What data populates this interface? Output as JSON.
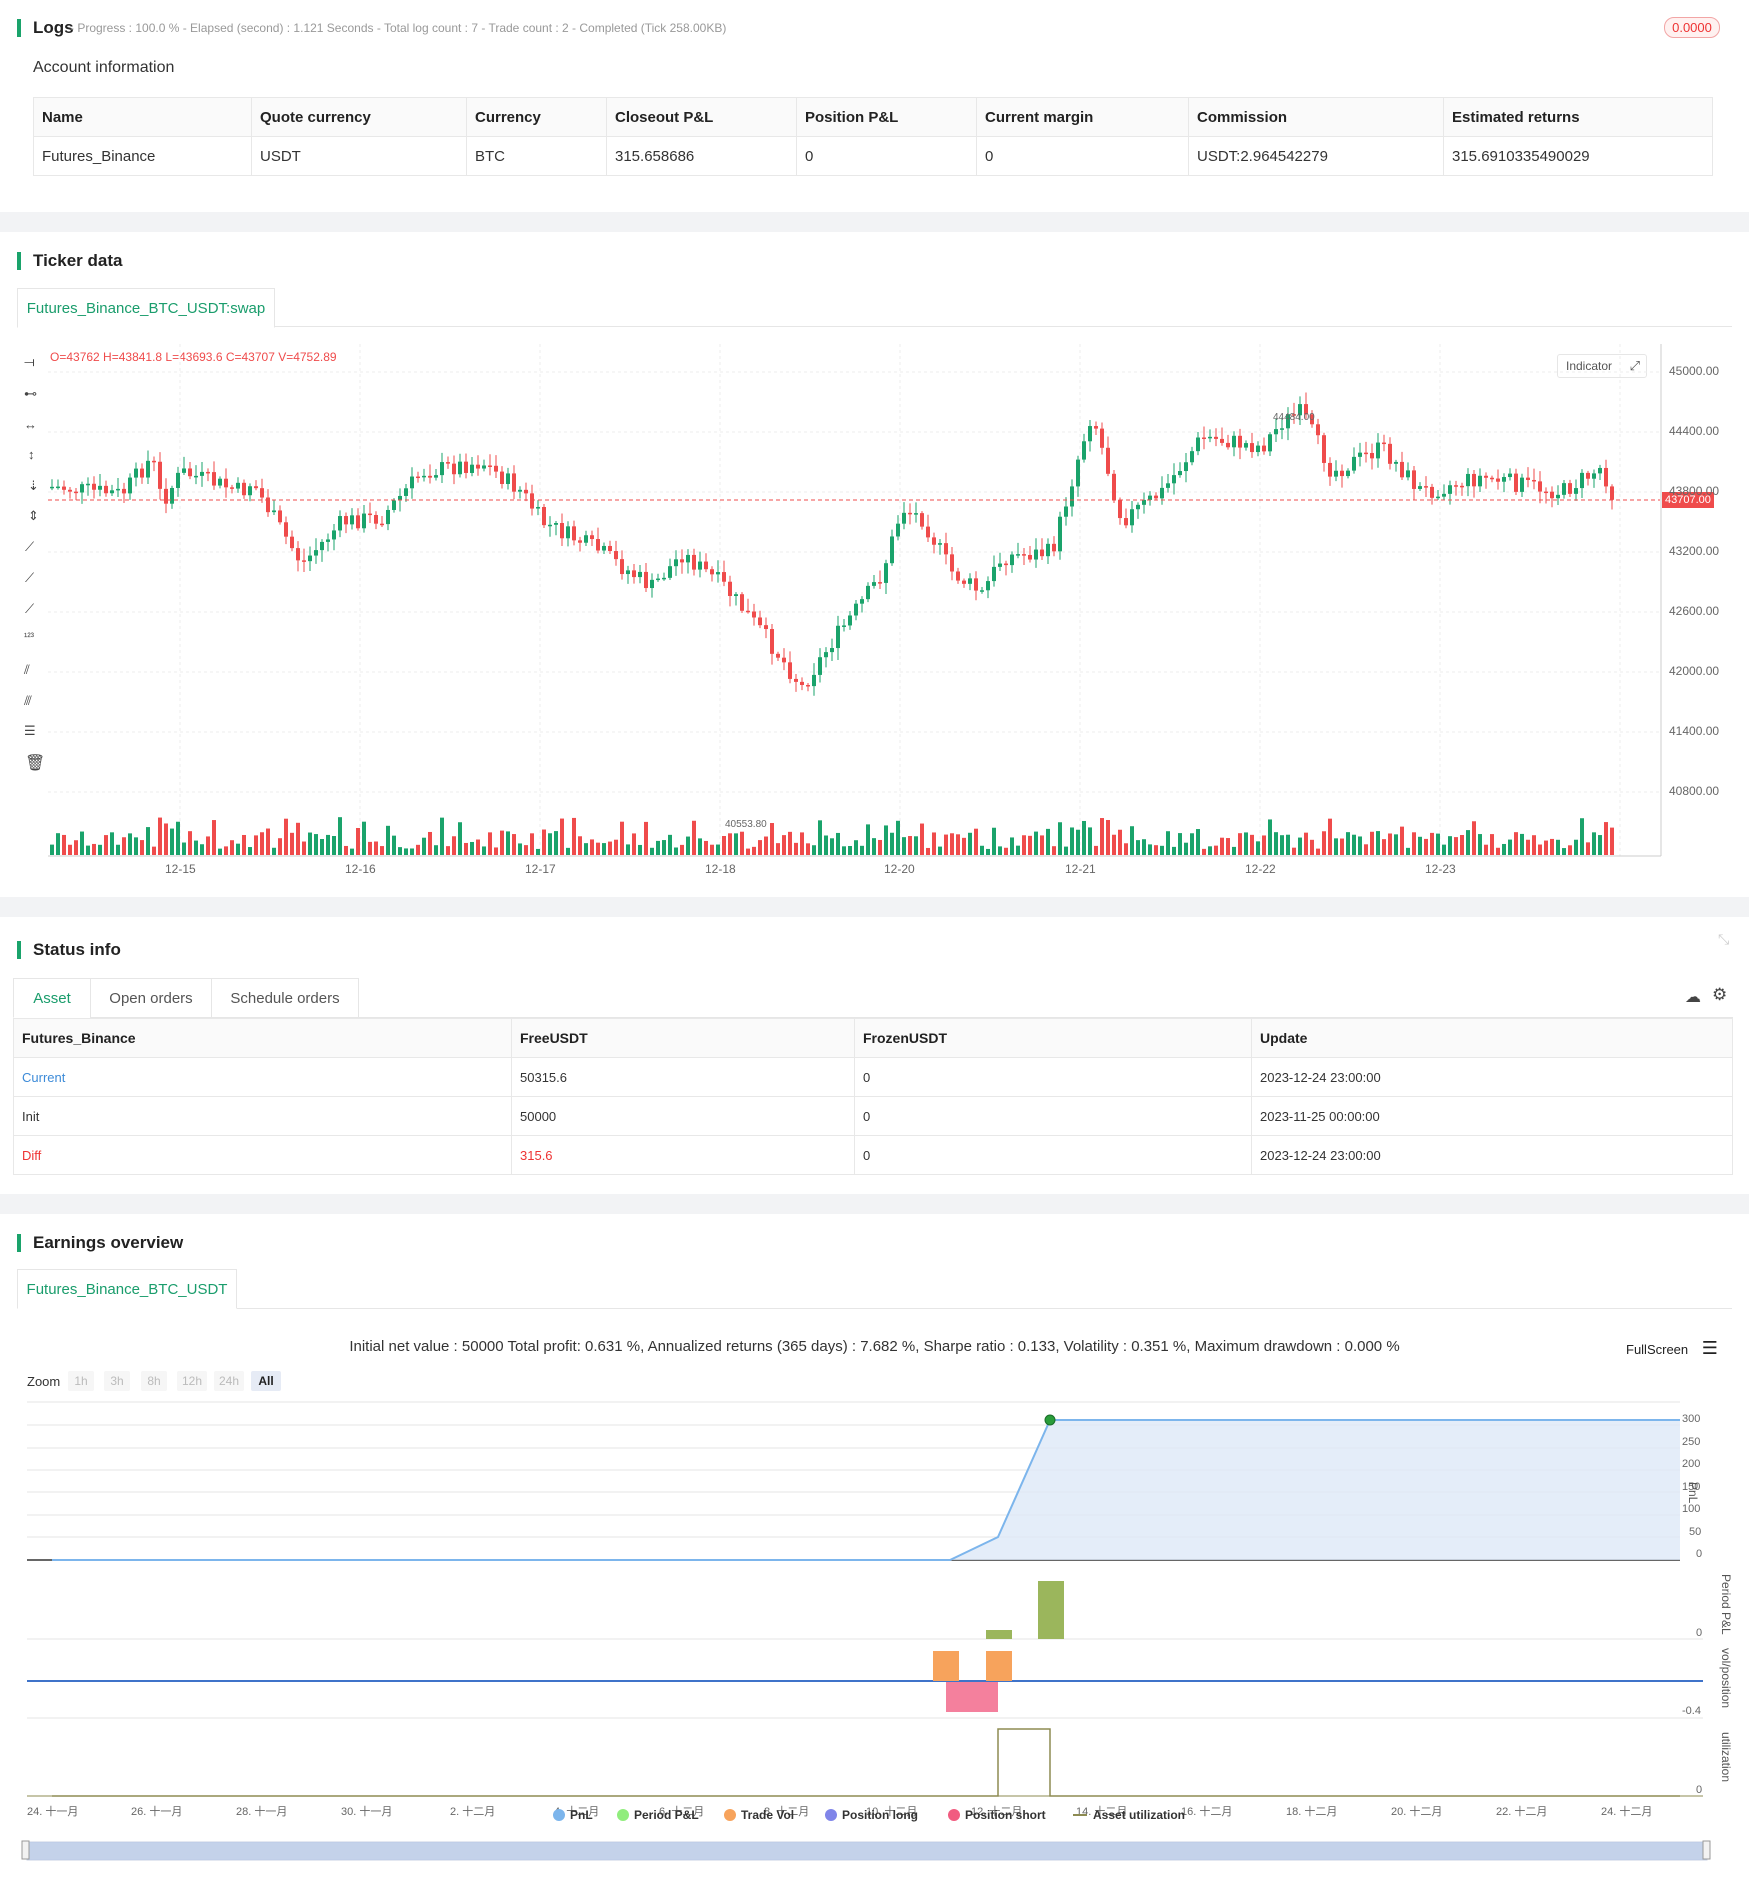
{
  "logs": {
    "title": "Logs",
    "status_line": "- Progress : 100.0 % - Elapsed (second) : 1.121 Seconds - Total log count : 7 - Trade count : 2 - Completed (Tick 258.00KB)",
    "badge": "0.0000",
    "account_title": "Account information",
    "columns": [
      "Name",
      "Quote currency",
      "Currency",
      "Closeout P&L",
      "Position P&L",
      "Current margin",
      "Commission",
      "Estimated returns"
    ],
    "row": [
      "Futures_Binance",
      "USDT",
      "BTC",
      "315.658686",
      "0",
      "0",
      "USDT:2.964542279",
      "315.6910335490029"
    ]
  },
  "ticker": {
    "title": "Ticker data",
    "tab": "Futures_Binance_BTC_USDT:swap",
    "ohlc": "O=43762 H=43841.8 L=43693.6 C=43707 V=4752.89",
    "indicator_btn": "Indicator",
    "last_price": "43707.00",
    "high_marker": "44484.00",
    "low_marker": "40553.80",
    "y_ticks": [
      "45000.00",
      "44400.00",
      "43800.00",
      "43200.00",
      "42600.00",
      "42000.00",
      "41400.00",
      "40800.00"
    ],
    "x_ticks": [
      "12-15",
      "12-16",
      "12-17",
      "12-18",
      "12-20",
      "12-21",
      "12-22",
      "12-23"
    ],
    "colors": {
      "up": "#1aa36b",
      "down": "#ef4b4b"
    }
  },
  "status": {
    "title": "Status info",
    "tabs": [
      "Asset",
      "Open orders",
      "Schedule orders"
    ],
    "columns": [
      "Futures_Binance",
      "FreeUSDT",
      "FrozenUSDT",
      "Update"
    ],
    "rows": [
      [
        "Current",
        "50315.6",
        "0",
        "2023-12-24 23:00:00"
      ],
      [
        "Init",
        "50000",
        "0",
        "2023-11-25 00:00:00"
      ],
      [
        "Diff",
        "315.6",
        "0",
        "2023-12-24 23:00:00"
      ]
    ]
  },
  "earnings": {
    "title": "Earnings overview",
    "tab": "Futures_Binance_BTC_USDT",
    "summary": "Initial net value : 50000 Total profit: 0.631 %, Annualized returns (365 days) : 7.682 %, Sharpe ratio : 0.133, Volatility : 0.351 %, Maximum drawdown : 0.000 %",
    "fullscreen": "FullScreen",
    "zoom_label": "Zoom",
    "zoom_buttons": [
      "1h",
      "3h",
      "8h",
      "12h",
      "24h",
      "All"
    ],
    "pnl_ticks": [
      "300",
      "250",
      "200",
      "150",
      "100",
      "50",
      "0"
    ],
    "axis_titles": [
      "PnL",
      "Period P&L",
      "vol/position",
      "utilization"
    ],
    "period_tick": "0",
    "vol_tick": "-0.4",
    "util_tick": "0",
    "x_ticks": [
      "24. 十一月",
      "26. 十一月",
      "28. 十一月",
      "30. 十一月",
      "2. 十二月",
      "4. 十二月",
      "6. 十二月",
      "8. 十二月",
      "10. 十二月",
      "12. 十二月",
      "14. 十二月",
      "16. 十二月",
      "18. 十二月",
      "20. 十二月",
      "22. 十二月",
      "24. 十二月"
    ],
    "legend": [
      {
        "label": "PnL",
        "color": "#7cb5ec"
      },
      {
        "label": "Period P&L",
        "color": "#90ed7d"
      },
      {
        "label": "Trade Vol",
        "color": "#f7a35c"
      },
      {
        "label": "Position long",
        "color": "#8085e9"
      },
      {
        "label": "Position short",
        "color": "#f15c80"
      },
      {
        "label": "Asset utilization",
        "color": "#8d8b52"
      }
    ]
  }
}
